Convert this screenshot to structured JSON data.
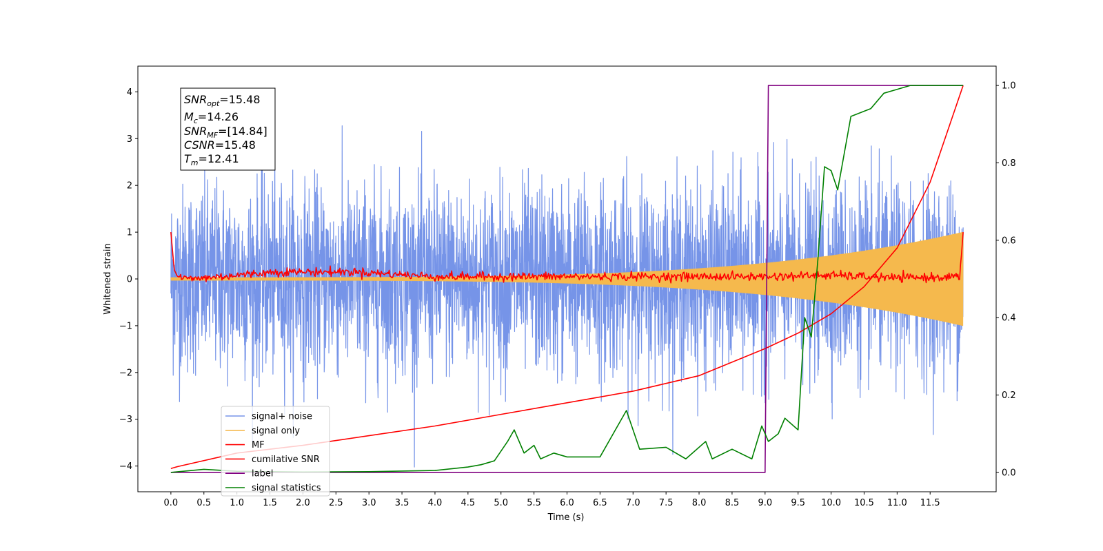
{
  "chart_data": {
    "type": "line",
    "xlabel": "Time (s)",
    "ylabel": "Whitened strain",
    "xlim": [
      -0.5,
      12.5
    ],
    "ylim": [
      -4.55,
      4.55
    ],
    "y2lim": [
      -0.05,
      1.05
    ],
    "x_ticks": [
      0.0,
      0.5,
      1.0,
      1.5,
      2.0,
      2.5,
      3.0,
      3.5,
      4.0,
      4.5,
      5.0,
      5.5,
      6.0,
      6.5,
      7.0,
      7.5,
      8.0,
      8.5,
      9.0,
      9.5,
      10.0,
      10.5,
      11.0,
      11.5
    ],
    "x_tick_labels": [
      "0.0",
      "0.5",
      "1.0",
      "1.5",
      "2.0",
      "2.5",
      "3.0",
      "3.5",
      "4.0",
      "4.5",
      "5.0",
      "5.5",
      "6.0",
      "6.5",
      "7.0",
      "7.5",
      "8.0",
      "8.5",
      "9.0",
      "9.5",
      "10.0",
      "10.5",
      "11.0",
      "11.5"
    ],
    "y_ticks": [
      -4,
      -3,
      -2,
      -1,
      0,
      1,
      2,
      3,
      4
    ],
    "y_tick_labels": [
      "−4",
      "−3",
      "−2",
      "−1",
      "0",
      "1",
      "2",
      "3",
      "4"
    ],
    "y2_ticks": [
      0.0,
      0.2,
      0.4,
      0.6,
      0.8,
      1.0
    ],
    "y2_tick_labels": [
      "0.0",
      "0.2",
      "0.4",
      "0.6",
      "0.8",
      "1.0"
    ],
    "grid": false,
    "legend": {
      "placement": "lower-left",
      "entries": [
        "signal+ noise",
        "signal only",
        "MF",
        "cumilative SNR",
        "label",
        "signal statistics"
      ]
    },
    "series": [
      {
        "name": "signal+ noise",
        "axis": "left",
        "color": "#7694e8",
        "kind": "noise",
        "x_range": [
          0.0,
          12.0
        ],
        "std": 1.0,
        "max_abs": 4.1
      },
      {
        "name": "signal only",
        "axis": "left",
        "color": "#f5b94d",
        "kind": "chirp",
        "x_range": [
          0.0,
          12.0
        ],
        "start_amplitude": 0.03,
        "end_amplitude": 1.0
      },
      {
        "name": "MF",
        "axis": "left",
        "color": "#ff0000",
        "x": [
          0.0,
          0.05,
          0.1,
          0.3,
          1.6,
          2.8,
          4.0,
          6.0,
          8.0,
          9.0,
          10.0,
          11.0,
          11.95,
          12.0
        ],
        "y": [
          1.0,
          0.2,
          0.05,
          0.0,
          0.15,
          0.15,
          0.05,
          0.05,
          0.05,
          0.05,
          0.08,
          0.02,
          0.05,
          1.0
        ]
      },
      {
        "name": "cumilative SNR",
        "axis": "right",
        "color": "#ff0000",
        "x": [
          0.0,
          0.1,
          1.0,
          2.0,
          3.0,
          4.0,
          5.0,
          6.0,
          7.0,
          8.0,
          9.0,
          9.5,
          10.0,
          10.5,
          11.0,
          11.5,
          12.0
        ],
        "y": [
          0.01,
          0.015,
          0.05,
          0.07,
          0.095,
          0.12,
          0.15,
          0.18,
          0.21,
          0.25,
          0.32,
          0.36,
          0.41,
          0.48,
          0.58,
          0.75,
          1.0
        ]
      },
      {
        "name": "label",
        "axis": "right",
        "color": "#800080",
        "x": [
          0.0,
          9.0,
          9.05,
          12.0
        ],
        "y": [
          0.0,
          0.0,
          1.0,
          1.0
        ]
      },
      {
        "name": "signal statistics",
        "axis": "right",
        "color": "#008000",
        "x": [
          0.0,
          0.5,
          1.0,
          2.0,
          3.0,
          4.0,
          4.5,
          4.7,
          4.9,
          5.1,
          5.2,
          5.35,
          5.5,
          5.6,
          5.8,
          6.0,
          6.5,
          6.9,
          7.1,
          7.5,
          7.8,
          8.1,
          8.2,
          8.5,
          8.8,
          8.95,
          9.05,
          9.2,
          9.3,
          9.5,
          9.6,
          9.7,
          9.8,
          9.9,
          10.0,
          10.1,
          10.3,
          10.6,
          10.8,
          11.0,
          11.2,
          11.5,
          12.0
        ],
        "y": [
          0.0,
          0.008,
          0.003,
          0.001,
          0.002,
          0.005,
          0.014,
          0.02,
          0.03,
          0.08,
          0.11,
          0.05,
          0.07,
          0.035,
          0.05,
          0.04,
          0.04,
          0.16,
          0.06,
          0.065,
          0.035,
          0.08,
          0.035,
          0.06,
          0.035,
          0.12,
          0.08,
          0.1,
          0.14,
          0.11,
          0.4,
          0.35,
          0.55,
          0.79,
          0.78,
          0.73,
          0.92,
          0.94,
          0.98,
          0.99,
          1.0,
          1.0,
          1.0
        ]
      }
    ]
  },
  "info_box": {
    "snr_opt": {
      "base": "SNR",
      "sub": "opt",
      "value": "=15.48"
    },
    "mc": {
      "base": "M",
      "sub": "c",
      "value": "=14.26"
    },
    "snr_mf": {
      "base": "SNR",
      "sub": "MF",
      "value": "=[14.84]"
    },
    "csnr": {
      "base": "CSNR",
      "value": "=15.48"
    },
    "tm": {
      "base": "T",
      "sub": "m",
      "value": "=12.41"
    }
  }
}
